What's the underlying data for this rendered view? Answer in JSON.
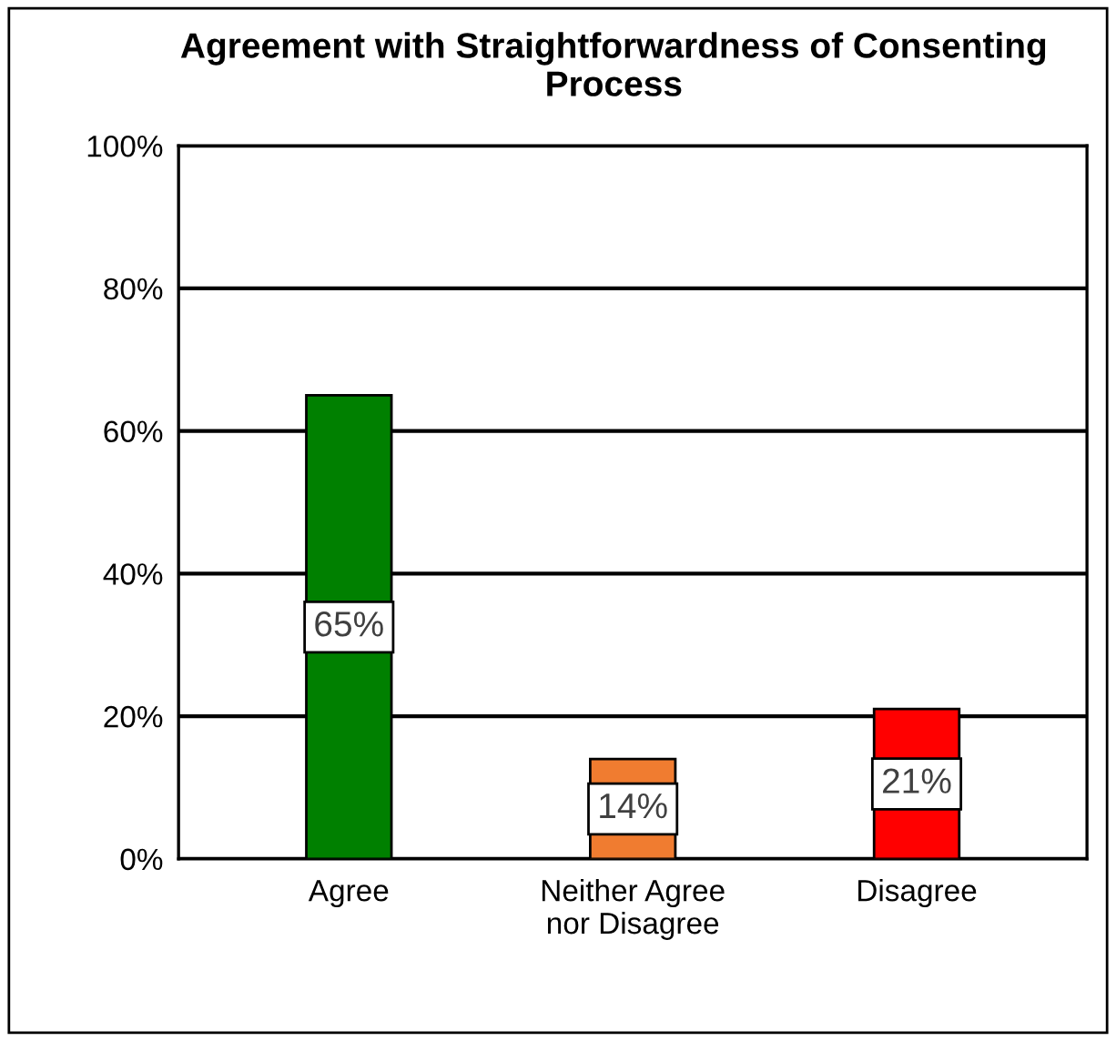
{
  "chart_data": {
    "type": "bar",
    "title": "Agreement with Straightforwardness of Consenting Process",
    "categories": [
      "Agree",
      "Neither Agree\nnor Disagree",
      "Disagree"
    ],
    "values": [
      65,
      14,
      21
    ],
    "colors": [
      "#008000",
      "#f07c30",
      "#ff0000"
    ],
    "value_labels": [
      "65%",
      "14%",
      "21%"
    ],
    "ylim": [
      0,
      100
    ],
    "yticks": [
      {
        "value": 0,
        "label": "0%"
      },
      {
        "value": 20,
        "label": "20%"
      },
      {
        "value": 40,
        "label": "40%"
      },
      {
        "value": 60,
        "label": "60%"
      },
      {
        "value": 80,
        "label": "80%"
      },
      {
        "value": 100,
        "label": "100%"
      }
    ],
    "grid": "y",
    "legend": false
  }
}
